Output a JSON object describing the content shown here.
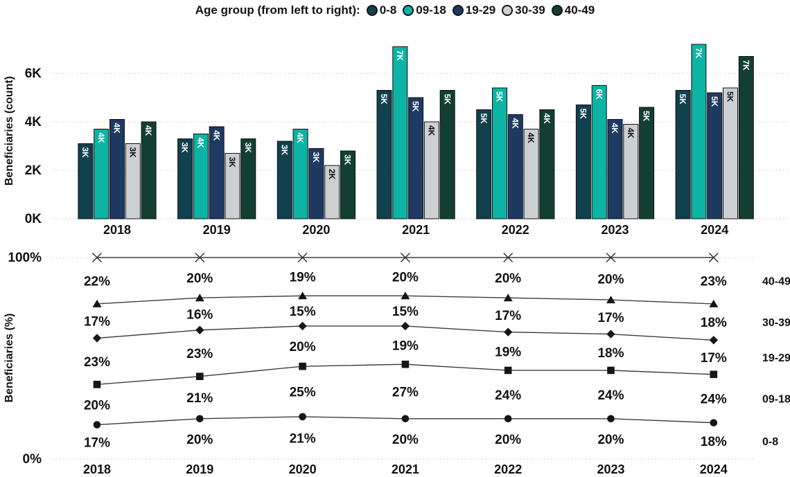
{
  "legend": {
    "title": "Age group (from left to right):",
    "items": [
      {
        "label": "0-8",
        "color": "#11404F"
      },
      {
        "label": "09-18",
        "color": "#0DB4A4"
      },
      {
        "label": "19-29",
        "color": "#1F3A62"
      },
      {
        "label": "30-39",
        "color": "#CDD0D2"
      },
      {
        "label": "40-49",
        "color": "#133F33"
      }
    ]
  },
  "chart_data": [
    {
      "type": "bar",
      "ylabel": "Beneficiaries (count)",
      "unit": "K",
      "ylim": [
        0,
        7.5
      ],
      "grid": true,
      "categories": [
        "2018",
        "2019",
        "2020",
        "2021",
        "2022",
        "2023",
        "2024"
      ],
      "yticks": [
        {
          "label": "0K",
          "value": 0
        },
        {
          "label": "2K",
          "value": 2
        },
        {
          "label": "4K",
          "value": 4
        },
        {
          "label": "6K",
          "value": 6
        }
      ],
      "series": [
        {
          "name": "0-8",
          "color": "#11404F",
          "values": [
            3.1,
            3.3,
            3.2,
            5.3,
            4.5,
            4.7,
            5.3
          ],
          "bar_labels": [
            "3K",
            "3K",
            "3K",
            "5K",
            "5K",
            "5K",
            "5K"
          ]
        },
        {
          "name": "09-18",
          "color": "#0DB4A4",
          "values": [
            3.7,
            3.5,
            3.7,
            7.1,
            5.4,
            5.5,
            7.2
          ],
          "bar_labels": [
            "4K",
            "4K",
            "4K",
            "7K",
            "5K",
            "6K",
            "7K"
          ]
        },
        {
          "name": "19-29",
          "color": "#1F3A62",
          "values": [
            4.1,
            3.8,
            2.9,
            5.0,
            4.3,
            4.1,
            5.2
          ],
          "bar_labels": [
            "4K",
            "4K",
            "3K",
            "5K",
            "4K",
            "4K",
            "5K"
          ]
        },
        {
          "name": "30-39",
          "color": "#CDD0D2",
          "values": [
            3.1,
            2.7,
            2.2,
            4.0,
            3.7,
            3.9,
            5.4
          ],
          "bar_labels": [
            "3K",
            "3K",
            "2K",
            "4K",
            "4K",
            "4K",
            "5K"
          ]
        },
        {
          "name": "40-49",
          "color": "#133F33",
          "values": [
            4.0,
            3.3,
            2.8,
            5.3,
            4.5,
            4.6,
            6.7
          ],
          "bar_labels": [
            "4K",
            "3K",
            "3K",
            "5K",
            "4K",
            "5K",
            "7K"
          ]
        }
      ]
    },
    {
      "type": "line",
      "ylabel": "Beneficiaries (%)",
      "ylim": [
        0,
        100
      ],
      "grid": true,
      "representation": "100%-stacked boundary lines: each marker line sits at the cumulative top of its age group; printed labels are each group's own share per year",
      "categories": [
        "2018",
        "2019",
        "2020",
        "2021",
        "2022",
        "2023",
        "2024"
      ],
      "yticks": [
        {
          "label": "0%",
          "value": 0
        },
        {
          "label": "100%",
          "value": 100
        }
      ],
      "series": [
        {
          "name": "0-8",
          "marker": "circle",
          "values": [
            17,
            20,
            21,
            20,
            20,
            20,
            18
          ]
        },
        {
          "name": "09-18",
          "marker": "square",
          "values": [
            20,
            21,
            25,
            27,
            24,
            24,
            24
          ]
        },
        {
          "name": "19-29",
          "marker": "diamond",
          "values": [
            23,
            23,
            20,
            19,
            19,
            18,
            17
          ]
        },
        {
          "name": "30-39",
          "marker": "triangle",
          "values": [
            17,
            16,
            15,
            15,
            17,
            17,
            18
          ]
        },
        {
          "name": "40-49",
          "marker": "x",
          "values": [
            22,
            20,
            19,
            20,
            20,
            20,
            23
          ],
          "line_fixed_at": 100
        }
      ]
    }
  ]
}
